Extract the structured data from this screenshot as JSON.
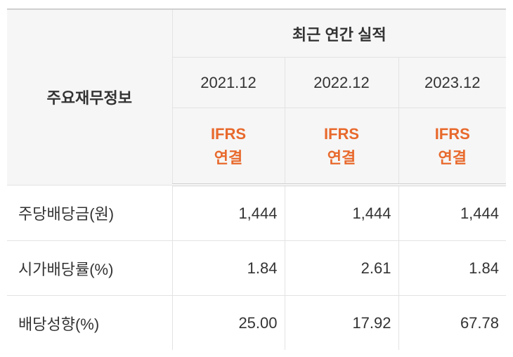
{
  "header": {
    "row_label": "주요재무정보",
    "group": "최근 연간 실적",
    "columns": [
      {
        "period": "2021.12",
        "standard": "IFRS",
        "basis": "연결"
      },
      {
        "period": "2022.12",
        "standard": "IFRS",
        "basis": "연결"
      },
      {
        "period": "2023.12",
        "standard": "IFRS",
        "basis": "연결"
      }
    ]
  },
  "table": {
    "rows": [
      [
        "주당배당금(원)",
        "1,444",
        "1,444",
        "1,444"
      ],
      [
        "시가배당률(%)",
        "1.84",
        "2.61",
        "1.84"
      ],
      [
        "배당성향(%)",
        "25.00",
        "17.92",
        "67.78"
      ]
    ]
  }
}
